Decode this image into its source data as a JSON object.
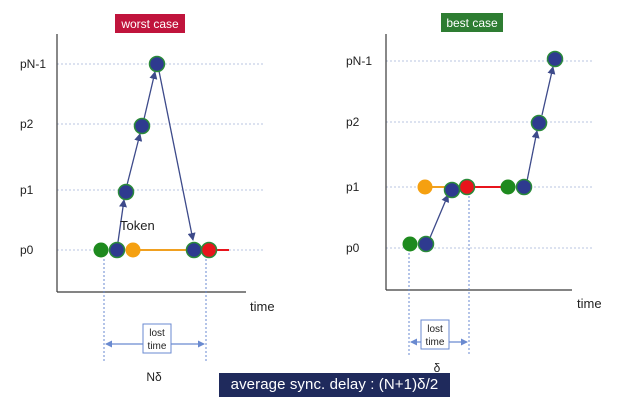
{
  "colors": {
    "axis": "#3a3a3a",
    "grid": "#b8c4e0",
    "arrow": "#3d4a8a",
    "node_blue": "#2e3a8f",
    "node_green": "#1e8a1e",
    "node_orange": "#f5a010",
    "node_red": "#e8141c",
    "node_outline": "#2a8a3a",
    "orange_line": "#f0a020",
    "red_line": "#e8141c",
    "measure": "#6a8ad0",
    "worst_badge": "#c0143c",
    "best_badge": "#2e7d32",
    "caption_bg": "#1f2a5c"
  },
  "worst": {
    "badge": "worst case",
    "levels": [
      "pN-1",
      "p2",
      "p1",
      "p0"
    ],
    "time_label": "time",
    "token_label": "Token",
    "lost_time_label": "lost\ntime",
    "measure_label": "Nδ"
  },
  "best": {
    "badge": "best case",
    "levels": [
      "pN-1",
      "p2",
      "p1",
      "p0"
    ],
    "time_label": "time",
    "lost_time_label": "lost\ntime",
    "measure_label": "δ"
  },
  "caption": "average sync. delay : (N+1)δ/2"
}
